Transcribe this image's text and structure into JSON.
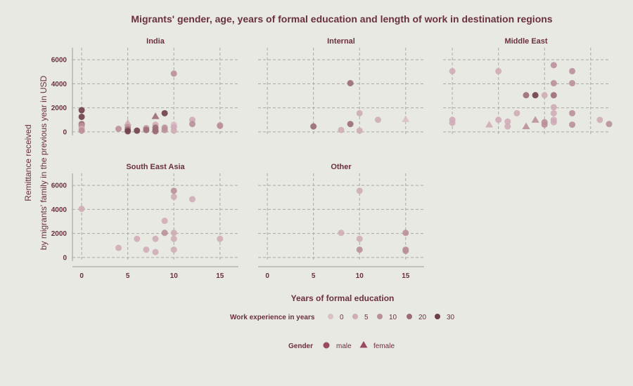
{
  "chart_data": {
    "type": "scatter",
    "title": "Migrants' gender, age, years of formal education and length of work in destination regions",
    "xlabel": "Years of formal education",
    "ylabel_line1": "Remittance received",
    "ylabel_line2": "by migrants' family in the previous year in USD",
    "xlim": [
      -1,
      17
    ],
    "ylim": [
      -300,
      7000
    ],
    "x_ticks": [
      0,
      5,
      10,
      15
    ],
    "y_ticks": [
      0,
      2000,
      4000,
      6000
    ],
    "grid": true,
    "colors": {
      "experience_scale": [
        "#d9bfc6",
        "#cfacb6",
        "#b98f9a",
        "#9c6b77",
        "#6f3e4b"
      ],
      "background": "#e8e9e3",
      "grid": "#a9aaa4",
      "text": "#6a3040"
    },
    "legend": {
      "placement": "bottom",
      "experience_title": "Work experience in years",
      "experience_labels": [
        "0",
        "5",
        "10",
        "20",
        "30"
      ],
      "gender_title": "Gender",
      "gender_labels": [
        "male",
        "female"
      ]
    },
    "facets": [
      {
        "name": "India",
        "points": [
          {
            "x": 0,
            "y": 1800,
            "exp": 30,
            "g": "male"
          },
          {
            "x": 0,
            "y": 1250,
            "exp": 25,
            "g": "male"
          },
          {
            "x": 0,
            "y": 650,
            "exp": 15,
            "g": "male"
          },
          {
            "x": 0,
            "y": 500,
            "exp": 10,
            "g": "male"
          },
          {
            "x": 0,
            "y": 250,
            "exp": 5,
            "g": "male"
          },
          {
            "x": 0,
            "y": 100,
            "exp": 8,
            "g": "male"
          },
          {
            "x": 4,
            "y": 250,
            "exp": 8,
            "g": "male"
          },
          {
            "x": 5,
            "y": 750,
            "exp": 3,
            "g": "female"
          },
          {
            "x": 5,
            "y": 400,
            "exp": 12,
            "g": "male"
          },
          {
            "x": 5,
            "y": 200,
            "exp": 22,
            "g": "male"
          },
          {
            "x": 5,
            "y": 50,
            "exp": 25,
            "g": "male"
          },
          {
            "x": 6,
            "y": 100,
            "exp": 25,
            "g": "male"
          },
          {
            "x": 7,
            "y": 300,
            "exp": 10,
            "g": "male"
          },
          {
            "x": 7,
            "y": 150,
            "exp": 15,
            "g": "male"
          },
          {
            "x": 8,
            "y": 1300,
            "exp": 20,
            "g": "female"
          },
          {
            "x": 8,
            "y": 600,
            "exp": 5,
            "g": "male"
          },
          {
            "x": 8,
            "y": 350,
            "exp": 15,
            "g": "male"
          },
          {
            "x": 8,
            "y": 150,
            "exp": 20,
            "g": "male"
          },
          {
            "x": 8,
            "y": 50,
            "exp": 22,
            "g": "male"
          },
          {
            "x": 9,
            "y": 1550,
            "exp": 25,
            "g": "male"
          },
          {
            "x": 9,
            "y": 350,
            "exp": 8,
            "g": "male"
          },
          {
            "x": 9,
            "y": 150,
            "exp": 12,
            "g": "male"
          },
          {
            "x": 10,
            "y": 4850,
            "exp": 12,
            "g": "male"
          },
          {
            "x": 10,
            "y": 600,
            "exp": 2,
            "g": "male"
          },
          {
            "x": 10,
            "y": 400,
            "exp": 5,
            "g": "male"
          },
          {
            "x": 10,
            "y": 100,
            "exp": 3,
            "g": "male"
          },
          {
            "x": 12,
            "y": 1000,
            "exp": 3,
            "g": "male"
          },
          {
            "x": 12,
            "y": 650,
            "exp": 8,
            "g": "male"
          },
          {
            "x": 15,
            "y": 550,
            "exp": 5,
            "g": "male"
          },
          {
            "x": 15,
            "y": 500,
            "exp": 10,
            "g": "male"
          }
        ]
      },
      {
        "name": "Internal",
        "points": [
          {
            "x": 5,
            "y": 450,
            "exp": 18,
            "g": "male"
          },
          {
            "x": 8,
            "y": 150,
            "exp": 5,
            "g": "male"
          },
          {
            "x": 9,
            "y": 4050,
            "exp": 18,
            "g": "male"
          },
          {
            "x": 9,
            "y": 650,
            "exp": 15,
            "g": "male"
          },
          {
            "x": 10,
            "y": 1550,
            "exp": 3,
            "g": "male"
          },
          {
            "x": 10,
            "y": 100,
            "exp": 5,
            "g": "male"
          },
          {
            "x": 12,
            "y": 1000,
            "exp": 5,
            "g": "male"
          },
          {
            "x": 15,
            "y": 1050,
            "exp": 2,
            "g": "female"
          }
        ]
      },
      {
        "name": "Middle East",
        "points": [
          {
            "x": 0,
            "y": 5050,
            "exp": 5,
            "g": "male"
          },
          {
            "x": 0,
            "y": 1000,
            "exp": 5,
            "g": "male"
          },
          {
            "x": 0,
            "y": 750,
            "exp": 3,
            "g": "male"
          },
          {
            "x": 4,
            "y": 600,
            "exp": 3,
            "g": "female"
          },
          {
            "x": 5,
            "y": 5050,
            "exp": 3,
            "g": "male"
          },
          {
            "x": 5,
            "y": 1000,
            "exp": 5,
            "g": "male"
          },
          {
            "x": 6,
            "y": 850,
            "exp": 3,
            "g": "male"
          },
          {
            "x": 6,
            "y": 450,
            "exp": 5,
            "g": "male"
          },
          {
            "x": 7,
            "y": 1550,
            "exp": 3,
            "g": "male"
          },
          {
            "x": 8,
            "y": 3050,
            "exp": 18,
            "g": "male"
          },
          {
            "x": 8,
            "y": 450,
            "exp": 10,
            "g": "female"
          },
          {
            "x": 9,
            "y": 3050,
            "exp": 25,
            "g": "male"
          },
          {
            "x": 9,
            "y": 1000,
            "exp": 12,
            "g": "female"
          },
          {
            "x": 10,
            "y": 3050,
            "exp": 5,
            "g": "male"
          },
          {
            "x": 10,
            "y": 800,
            "exp": 10,
            "g": "male"
          },
          {
            "x": 10,
            "y": 600,
            "exp": 8,
            "g": "male"
          },
          {
            "x": 11,
            "y": 5550,
            "exp": 8,
            "g": "male"
          },
          {
            "x": 11,
            "y": 4050,
            "exp": 12,
            "g": "male"
          },
          {
            "x": 11,
            "y": 3050,
            "exp": 15,
            "g": "male"
          },
          {
            "x": 11,
            "y": 2050,
            "exp": 3,
            "g": "male"
          },
          {
            "x": 11,
            "y": 1550,
            "exp": 5,
            "g": "male"
          },
          {
            "x": 11,
            "y": 1000,
            "exp": 3,
            "g": "male"
          },
          {
            "x": 11,
            "y": 800,
            "exp": 5,
            "g": "male"
          },
          {
            "x": 13,
            "y": 5050,
            "exp": 10,
            "g": "male"
          },
          {
            "x": 13,
            "y": 4050,
            "exp": 10,
            "g": "male"
          },
          {
            "x": 13,
            "y": 1550,
            "exp": 8,
            "g": "male"
          },
          {
            "x": 13,
            "y": 600,
            "exp": 12,
            "g": "male"
          },
          {
            "x": 16,
            "y": 1000,
            "exp": 5,
            "g": "male"
          },
          {
            "x": 17,
            "y": 650,
            "exp": 12,
            "g": "male"
          }
        ]
      },
      {
        "name": "South East Asia",
        "points": [
          {
            "x": 0,
            "y": 4050,
            "exp": 3,
            "g": "male"
          },
          {
            "x": 4,
            "y": 800,
            "exp": 3,
            "g": "male"
          },
          {
            "x": 6,
            "y": 1550,
            "exp": 5,
            "g": "male"
          },
          {
            "x": 7,
            "y": 650,
            "exp": 5,
            "g": "male"
          },
          {
            "x": 8,
            "y": 1550,
            "exp": 5,
            "g": "male"
          },
          {
            "x": 8,
            "y": 450,
            "exp": 5,
            "g": "male"
          },
          {
            "x": 9,
            "y": 3050,
            "exp": 5,
            "g": "male"
          },
          {
            "x": 9,
            "y": 2050,
            "exp": 8,
            "g": "male"
          },
          {
            "x": 10,
            "y": 5550,
            "exp": 10,
            "g": "male"
          },
          {
            "x": 10,
            "y": 5050,
            "exp": 3,
            "g": "male"
          },
          {
            "x": 10,
            "y": 2050,
            "exp": 3,
            "g": "male"
          },
          {
            "x": 10,
            "y": 1550,
            "exp": 5,
            "g": "male"
          },
          {
            "x": 10,
            "y": 650,
            "exp": 3,
            "g": "male"
          },
          {
            "x": 12,
            "y": 4850,
            "exp": 5,
            "g": "male"
          },
          {
            "x": 15,
            "y": 1550,
            "exp": 5,
            "g": "male"
          }
        ]
      },
      {
        "name": "Other",
        "points": [
          {
            "x": 8,
            "y": 2050,
            "exp": 3,
            "g": "male"
          },
          {
            "x": 10,
            "y": 5550,
            "exp": 5,
            "g": "male"
          },
          {
            "x": 10,
            "y": 1550,
            "exp": 5,
            "g": "male"
          },
          {
            "x": 10,
            "y": 650,
            "exp": 12,
            "g": "male"
          },
          {
            "x": 15,
            "y": 2050,
            "exp": 8,
            "g": "male"
          },
          {
            "x": 15,
            "y": 650,
            "exp": 10,
            "g": "male"
          },
          {
            "x": 15,
            "y": 550,
            "exp": 12,
            "g": "male"
          }
        ]
      }
    ]
  }
}
